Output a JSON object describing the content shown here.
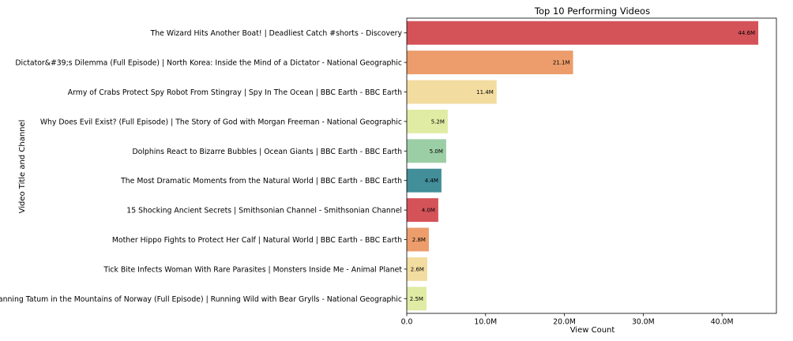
{
  "chart_data": {
    "type": "bar",
    "orientation": "horizontal",
    "title": "Top 10 Performing Videos",
    "xlabel": "View Count",
    "ylabel": "Video Title and Channel",
    "xlim": [
      0,
      46.9
    ],
    "x_unit_suffix": "M",
    "x_ticks": [
      0,
      10,
      20,
      30,
      40
    ],
    "x_tick_labels": [
      "0.0",
      "10.0M",
      "20.0M",
      "30.0M",
      "40.0M"
    ],
    "grid": false,
    "categories": [
      "The Wizard Hits Another Boat! | Deadliest Catch #shorts - Discovery",
      "Dictator&#39;s Dilemma (Full Episode) | North Korea: Inside the Mind of a Dictator - National Geographic",
      "Army of Crabs Protect Spy Robot From Stingray | Spy In The Ocean | BBC Earth - BBC Earth",
      "Why Does Evil Exist? (Full Episode) | The Story of God with Morgan Freeman - National Geographic",
      "Dolphins React to Bizarre Bubbles | Ocean Giants | BBC Earth - BBC Earth",
      "The Most Dramatic Moments from the Natural World | BBC Earth - BBC Earth",
      "15 Shocking Ancient Secrets | Smithsonian Channel - Smithsonian Channel",
      "Mother Hippo Fights to Protect Her Calf | Natural World | BBC Earth - BBC Earth",
      "Tick Bite Infects Woman With Rare Parasites | Monsters Inside Me - Animal Planet",
      "Channing Tatum in the Mountains of Norway (Full Episode) | Running Wild with Bear Grylls - National Geographic"
    ],
    "values": [
      44.6,
      21.1,
      11.4,
      5.2,
      5.0,
      4.4,
      4.0,
      2.8,
      2.6,
      2.5
    ],
    "value_labels": [
      "44.6M",
      "21.1M",
      "11.4M",
      "5.2M",
      "5.0M",
      "4.4M",
      "4.0M",
      "2.8M",
      "2.6M",
      "2.5M"
    ],
    "colors": [
      "#d45359",
      "#ec9d6b",
      "#f3dca0",
      "#e0eba4",
      "#9ccea5",
      "#428e99",
      "#d45359",
      "#ec9d6b",
      "#f3dca0",
      "#e0eba4"
    ]
  }
}
